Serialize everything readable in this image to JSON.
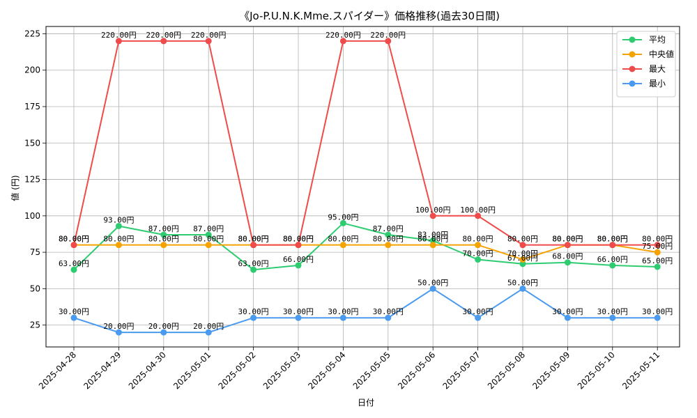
{
  "chart_data": {
    "type": "line",
    "title": "《Jo-P.U.N.K.Mme.スパイダー》価格推移(過去30日間)",
    "xlabel": "日付",
    "ylabel": "値 (円)",
    "ylim": [
      10,
      230
    ],
    "yticks": [
      25,
      50,
      75,
      100,
      125,
      150,
      175,
      200,
      225
    ],
    "grid": true,
    "legend_position": "top-right",
    "label_suffix": "円",
    "categories": [
      "2025-04-28",
      "2025-04-29",
      "2025-04-30",
      "2025-05-01",
      "2025-05-02",
      "2025-05-03",
      "2025-05-04",
      "2025-05-05",
      "2025-05-06",
      "2025-05-07",
      "2025-05-08",
      "2025-05-09",
      "2025-05-10",
      "2025-05-11"
    ],
    "series": [
      {
        "name": "平均",
        "color": "#2ecc71",
        "values": [
          63,
          93,
          87,
          87,
          63,
          66,
          95,
          87,
          83,
          70,
          67,
          68,
          66,
          65
        ]
      },
      {
        "name": "中央値",
        "color": "#f5a300",
        "values": [
          80,
          80,
          80,
          80,
          80,
          80,
          80,
          80,
          80,
          80,
          70,
          80,
          80,
          75
        ]
      },
      {
        "name": "最大",
        "color": "#ef4b4b",
        "values": [
          80,
          220,
          220,
          220,
          80,
          80,
          220,
          220,
          100,
          100,
          80,
          80,
          80,
          80
        ]
      },
      {
        "name": "最小",
        "color": "#4a9af0",
        "values": [
          30,
          20,
          20,
          20,
          30,
          30,
          30,
          30,
          50,
          30,
          50,
          30,
          30,
          30
        ]
      }
    ]
  }
}
